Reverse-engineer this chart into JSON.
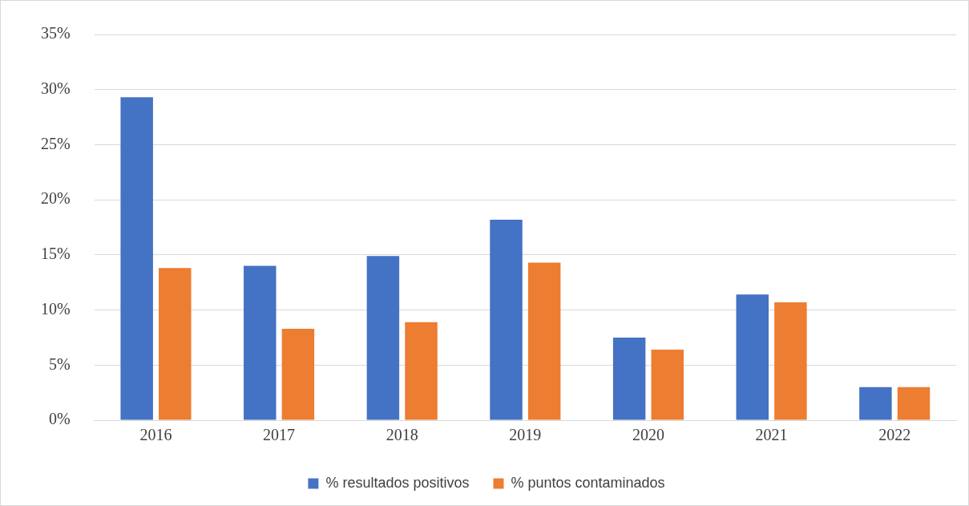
{
  "chart_data": {
    "type": "bar",
    "categories": [
      "2016",
      "2017",
      "2018",
      "2019",
      "2020",
      "2021",
      "2022"
    ],
    "series": [
      {
        "name": "% resultados positivos",
        "color": "#4472c4",
        "values": [
          29.3,
          14.0,
          14.9,
          18.2,
          7.5,
          11.4,
          3.0
        ]
      },
      {
        "name": "% puntos contaminados",
        "color": "#ed7d31",
        "values": [
          13.8,
          8.3,
          8.9,
          14.3,
          6.4,
          10.7,
          3.0
        ]
      }
    ],
    "ylim": [
      0,
      35
    ],
    "yticks": [
      {
        "value": 0,
        "label": "0%"
      },
      {
        "value": 5,
        "label": "5%"
      },
      {
        "value": 10,
        "label": "10%"
      },
      {
        "value": 15,
        "label": "15%"
      },
      {
        "value": 20,
        "label": "20%"
      },
      {
        "value": 25,
        "label": "25%"
      },
      {
        "value": 30,
        "label": "30%"
      },
      {
        "value": 35,
        "label": "35%"
      }
    ],
    "grid": "y",
    "legend": "bottom"
  }
}
